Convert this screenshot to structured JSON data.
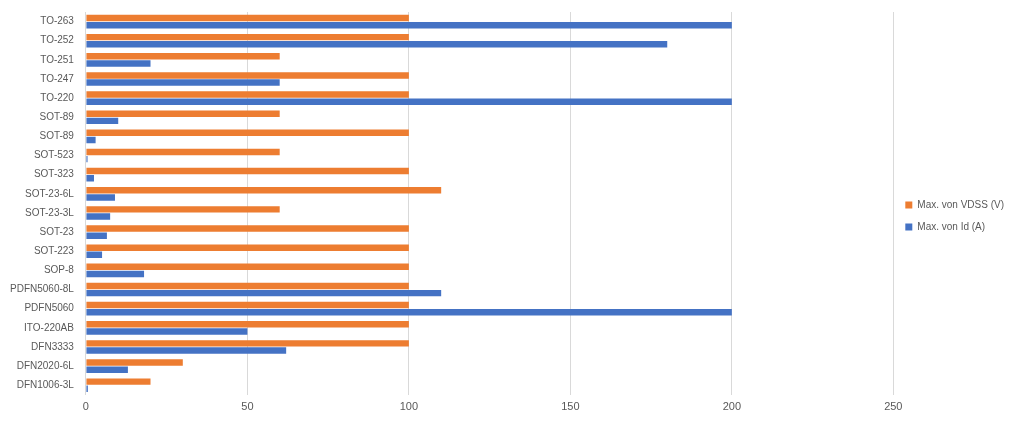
{
  "chart_data": {
    "type": "bar",
    "orientation": "horizontal",
    "categories": [
      "DFN1006-3L",
      "DFN2020-6L",
      "DFN3333",
      "ITO-220AB",
      "PDFN5060",
      "PDFN5060-8L",
      "SOP-8",
      "SOT-223",
      "SOT-23",
      "SOT-23-3L",
      "SOT-23-6L",
      "SOT-323",
      "SOT-523",
      "SOT-89",
      "SOT-89",
      "TO-220",
      "TO-247",
      "TO-251",
      "TO-252",
      "TO-263"
    ],
    "series": [
      {
        "name": "Max. von VDSS (V)",
        "color": "#ed7d31",
        "values": [
          20,
          30,
          100,
          100,
          100,
          100,
          100,
          100,
          100,
          60,
          110,
          100,
          60,
          100,
          60,
          100,
          100,
          60,
          100,
          100
        ]
      },
      {
        "name": "Max. von Id (A)",
        "color": "#4472c4",
        "values": [
          0.6,
          13,
          62,
          50,
          200,
          110,
          18,
          5,
          6.5,
          7.5,
          9,
          2.5,
          0.5,
          3,
          10,
          200,
          60,
          20,
          180,
          200
        ]
      }
    ],
    "xlim": [
      0,
      250
    ],
    "xticks": [
      0,
      50,
      100,
      150,
      200,
      250
    ],
    "grid": true,
    "legend": "right"
  }
}
